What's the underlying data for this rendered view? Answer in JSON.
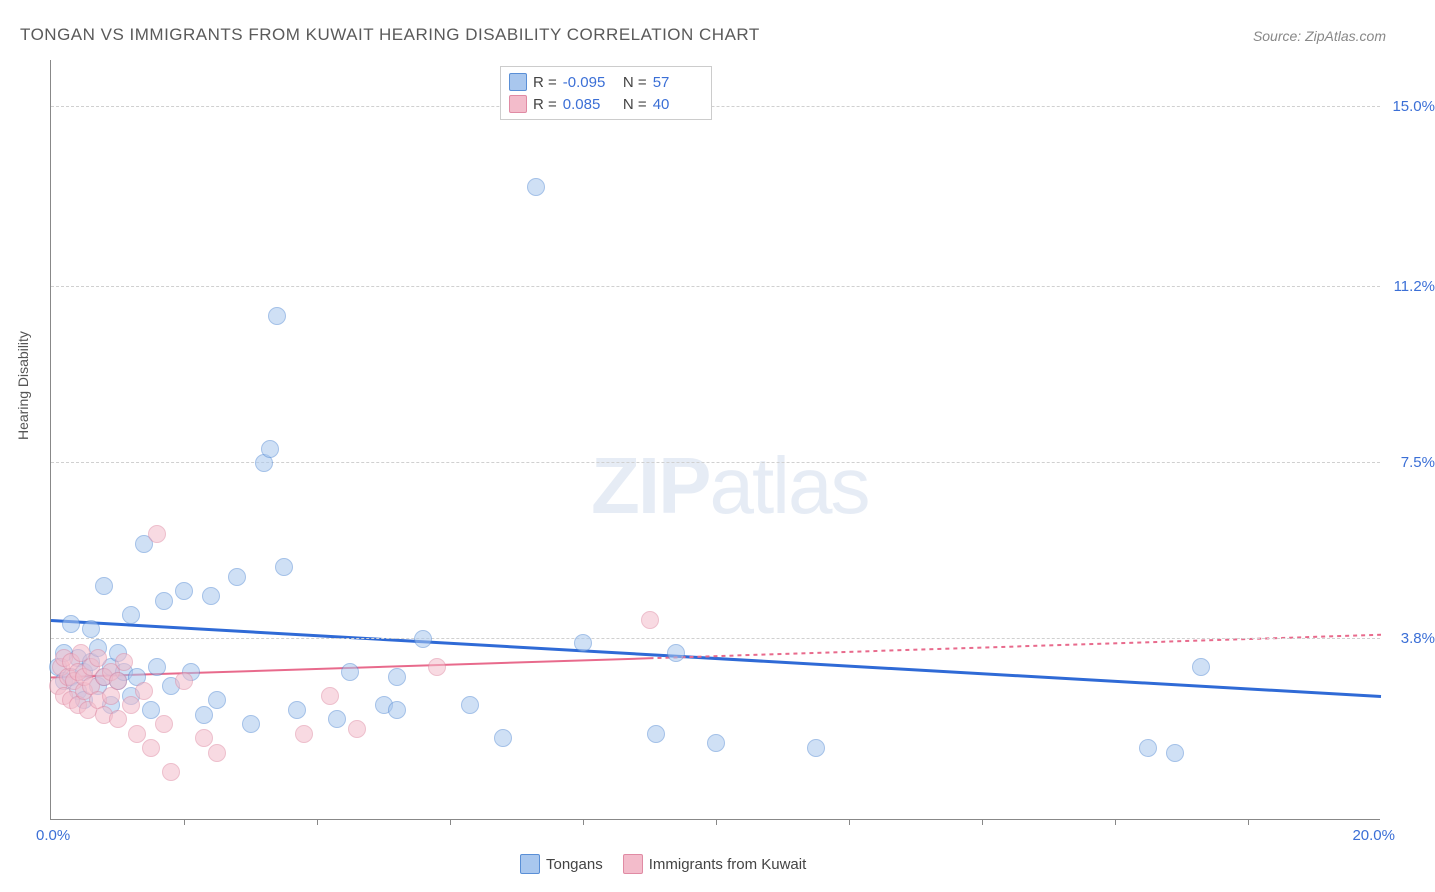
{
  "title": "TONGAN VS IMMIGRANTS FROM KUWAIT HEARING DISABILITY CORRELATION CHART",
  "title_color": "#5a5a5a",
  "title_fontsize": 17,
  "source_label": "Source: ZipAtlas.com",
  "source_color": "#888888",
  "source_fontsize": 14,
  "yaxis_label": "Hearing Disability",
  "chart": {
    "type": "scatter",
    "xlim": [
      0,
      20
    ],
    "ylim": [
      0,
      16
    ],
    "yticks": [
      {
        "v": 15.0,
        "label": "15.0%"
      },
      {
        "v": 11.2,
        "label": "11.2%"
      },
      {
        "v": 7.5,
        "label": "7.5%"
      },
      {
        "v": 3.8,
        "label": "3.8%"
      }
    ],
    "xtick_min": "0.0%",
    "xtick_max": "20.0%",
    "xtick_marks": [
      2,
      4,
      6,
      8,
      10,
      12,
      14,
      16,
      18
    ],
    "grid_color": "#d0d0d0",
    "tick_color": "#3b6fd6",
    "tick_fontsize": 15,
    "background_color": "#ffffff",
    "point_radius": 9,
    "point_opacity": 0.55,
    "series": [
      {
        "name": "Tongans",
        "fill": "#a9c7ee",
        "stroke": "#5a8fd6",
        "trend": {
          "y_at_xmin": 4.2,
          "y_at_xmax": 2.6,
          "stroke": "#2f6ad6",
          "width": 3,
          "dash": "solid",
          "extent": 20
        },
        "R": "-0.095",
        "N": "57",
        "points": [
          [
            0.1,
            3.2
          ],
          [
            0.2,
            2.9
          ],
          [
            0.2,
            3.5
          ],
          [
            0.3,
            3.0
          ],
          [
            0.3,
            4.1
          ],
          [
            0.4,
            2.7
          ],
          [
            0.4,
            3.4
          ],
          [
            0.5,
            3.1
          ],
          [
            0.5,
            2.5
          ],
          [
            0.6,
            3.3
          ],
          [
            0.6,
            4.0
          ],
          [
            0.7,
            2.8
          ],
          [
            0.7,
            3.6
          ],
          [
            0.8,
            3.0
          ],
          [
            0.8,
            4.9
          ],
          [
            0.9,
            2.4
          ],
          [
            0.9,
            3.2
          ],
          [
            1.0,
            3.5
          ],
          [
            1.0,
            2.9
          ],
          [
            1.1,
            3.1
          ],
          [
            1.2,
            4.3
          ],
          [
            1.2,
            2.6
          ],
          [
            1.3,
            3.0
          ],
          [
            1.4,
            5.8
          ],
          [
            1.5,
            2.3
          ],
          [
            1.6,
            3.2
          ],
          [
            1.7,
            4.6
          ],
          [
            1.8,
            2.8
          ],
          [
            2.0,
            4.8
          ],
          [
            2.1,
            3.1
          ],
          [
            2.3,
            2.2
          ],
          [
            2.4,
            4.7
          ],
          [
            2.5,
            2.5
          ],
          [
            2.8,
            5.1
          ],
          [
            3.0,
            2.0
          ],
          [
            3.2,
            7.5
          ],
          [
            3.3,
            7.8
          ],
          [
            3.4,
            10.6
          ],
          [
            3.5,
            5.3
          ],
          [
            3.7,
            2.3
          ],
          [
            4.3,
            2.1
          ],
          [
            4.5,
            3.1
          ],
          [
            5.0,
            2.4
          ],
          [
            5.2,
            3.0
          ],
          [
            5.2,
            2.3
          ],
          [
            5.6,
            3.8
          ],
          [
            6.3,
            2.4
          ],
          [
            6.8,
            1.7
          ],
          [
            7.3,
            13.3
          ],
          [
            8.0,
            3.7
          ],
          [
            9.1,
            1.8
          ],
          [
            9.4,
            3.5
          ],
          [
            10.0,
            1.6
          ],
          [
            11.5,
            1.5
          ],
          [
            16.5,
            1.5
          ],
          [
            16.9,
            1.4
          ],
          [
            17.3,
            3.2
          ]
        ]
      },
      {
        "name": "Immigrants from Kuwait",
        "fill": "#f3bccb",
        "stroke": "#e08ba4",
        "trend": {
          "y_at_xmin": 3.0,
          "y_at_xmax": 3.9,
          "stroke": "#e86a8c",
          "width": 2,
          "dash": "4 4",
          "solid_until": 9.0,
          "extent": 20
        },
        "R": "0.085",
        "N": "40",
        "points": [
          [
            0.1,
            2.8
          ],
          [
            0.15,
            3.2
          ],
          [
            0.2,
            2.6
          ],
          [
            0.2,
            3.4
          ],
          [
            0.25,
            3.0
          ],
          [
            0.3,
            2.5
          ],
          [
            0.3,
            3.3
          ],
          [
            0.35,
            2.9
          ],
          [
            0.4,
            3.1
          ],
          [
            0.4,
            2.4
          ],
          [
            0.45,
            3.5
          ],
          [
            0.5,
            2.7
          ],
          [
            0.5,
            3.0
          ],
          [
            0.55,
            2.3
          ],
          [
            0.6,
            3.2
          ],
          [
            0.6,
            2.8
          ],
          [
            0.7,
            3.4
          ],
          [
            0.7,
            2.5
          ],
          [
            0.8,
            3.0
          ],
          [
            0.8,
            2.2
          ],
          [
            0.9,
            3.1
          ],
          [
            0.9,
            2.6
          ],
          [
            1.0,
            2.9
          ],
          [
            1.0,
            2.1
          ],
          [
            1.1,
            3.3
          ],
          [
            1.2,
            2.4
          ],
          [
            1.3,
            1.8
          ],
          [
            1.4,
            2.7
          ],
          [
            1.5,
            1.5
          ],
          [
            1.6,
            6.0
          ],
          [
            1.7,
            2.0
          ],
          [
            1.8,
            1.0
          ],
          [
            2.0,
            2.9
          ],
          [
            2.3,
            1.7
          ],
          [
            2.5,
            1.4
          ],
          [
            3.8,
            1.8
          ],
          [
            4.2,
            2.6
          ],
          [
            4.6,
            1.9
          ],
          [
            5.8,
            3.2
          ],
          [
            9.0,
            4.2
          ]
        ]
      }
    ]
  },
  "watermark": {
    "bold": "ZIP",
    "light": "atlas"
  }
}
